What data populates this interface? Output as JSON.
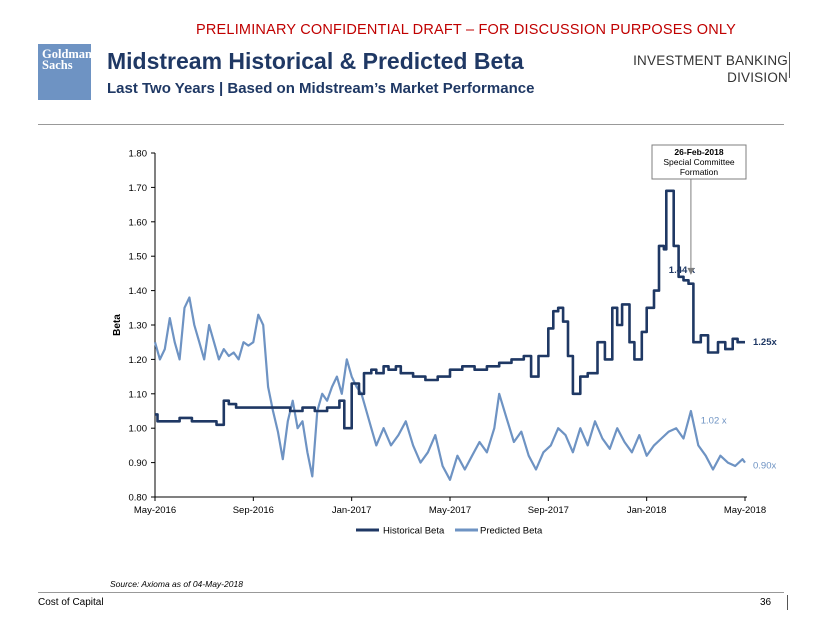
{
  "banner": "PRELIMINARY CONFIDENTIAL DRAFT – FOR DISCUSSION PURPOSES ONLY",
  "logo": {
    "line1": "Goldman",
    "line2": "Sachs"
  },
  "header": {
    "title": "Midstream Historical & Predicted Beta",
    "subtitle": "Last Two Years | Based on Midstream’s Market Performance",
    "division_line1": "INVESTMENT BANKING",
    "division_line2": "DIVISION"
  },
  "chart_data": {
    "type": "line",
    "ylabel": "Beta",
    "ylim": [
      0.8,
      1.8
    ],
    "yticks": [
      "0.80",
      "0.90",
      "1.00",
      "1.10",
      "1.20",
      "1.30",
      "1.40",
      "1.50",
      "1.60",
      "1.70",
      "1.80"
    ],
    "x_range": [
      0,
      24
    ],
    "xticks": [
      {
        "label": "May-2016",
        "m": 0
      },
      {
        "label": "Sep-2016",
        "m": 4
      },
      {
        "label": "Jan-2017",
        "m": 8
      },
      {
        "label": "May-2017",
        "m": 12
      },
      {
        "label": "Sep-2017",
        "m": 16
      },
      {
        "label": "Jan-2018",
        "m": 20
      },
      {
        "label": "May-2018",
        "m": 24
      }
    ],
    "series": [
      {
        "name": "Historical Beta",
        "color": "#1f3864",
        "x": [
          0,
          0.1,
          0.5,
          1.0,
          1.5,
          2.0,
          2.5,
          2.8,
          3.0,
          3.3,
          3.6,
          4.0,
          4.5,
          5.0,
          5.5,
          6.0,
          6.5,
          7.0,
          7.5,
          7.7,
          8.0,
          8.3,
          8.5,
          8.8,
          9.0,
          9.3,
          9.5,
          9.8,
          10.0,
          10.5,
          11.0,
          11.5,
          12.0,
          12.5,
          13.0,
          13.5,
          14.0,
          14.5,
          15.0,
          15.3,
          15.6,
          16.0,
          16.2,
          16.4,
          16.6,
          16.8,
          17.0,
          17.3,
          17.6,
          18.0,
          18.3,
          18.6,
          18.8,
          19.0,
          19.3,
          19.5,
          19.8,
          20.0,
          20.3,
          20.5,
          20.7,
          20.8,
          20.9,
          21.1,
          21.3,
          21.5,
          21.7,
          21.9,
          22.2,
          22.5,
          22.7,
          22.9,
          23.2,
          23.5,
          23.7,
          24.0
        ],
        "values": [
          1.04,
          1.02,
          1.02,
          1.03,
          1.02,
          1.02,
          1.01,
          1.08,
          1.07,
          1.06,
          1.06,
          1.06,
          1.06,
          1.06,
          1.05,
          1.06,
          1.05,
          1.06,
          1.08,
          1.0,
          1.13,
          1.1,
          1.16,
          1.17,
          1.16,
          1.18,
          1.17,
          1.18,
          1.16,
          1.15,
          1.14,
          1.15,
          1.17,
          1.18,
          1.17,
          1.18,
          1.19,
          1.2,
          1.21,
          1.15,
          1.21,
          1.29,
          1.34,
          1.35,
          1.31,
          1.21,
          1.1,
          1.15,
          1.16,
          1.25,
          1.2,
          1.35,
          1.3,
          1.36,
          1.25,
          1.2,
          1.28,
          1.35,
          1.4,
          1.53,
          1.52,
          1.69,
          1.69,
          1.53,
          1.44,
          1.43,
          1.42,
          1.25,
          1.27,
          1.22,
          1.22,
          1.25,
          1.23,
          1.26,
          1.25,
          1.25
        ]
      },
      {
        "name": "Predicted Beta",
        "color": "#6e93c3",
        "x": [
          0,
          0.2,
          0.4,
          0.6,
          0.8,
          1.0,
          1.2,
          1.4,
          1.6,
          1.8,
          2.0,
          2.2,
          2.4,
          2.6,
          2.8,
          3.0,
          3.2,
          3.4,
          3.6,
          3.8,
          4.0,
          4.2,
          4.4,
          4.6,
          4.8,
          5.0,
          5.2,
          5.4,
          5.6,
          5.8,
          6.0,
          6.2,
          6.4,
          6.6,
          6.8,
          7.0,
          7.2,
          7.4,
          7.6,
          7.8,
          8.0,
          8.2,
          8.4,
          8.6,
          8.8,
          9.0,
          9.3,
          9.6,
          9.9,
          10.2,
          10.5,
          10.8,
          11.1,
          11.4,
          11.7,
          12.0,
          12.3,
          12.6,
          12.9,
          13.2,
          13.5,
          13.8,
          14.0,
          14.3,
          14.6,
          14.9,
          15.2,
          15.5,
          15.8,
          16.1,
          16.4,
          16.7,
          17.0,
          17.3,
          17.6,
          17.9,
          18.2,
          18.5,
          18.8,
          19.1,
          19.4,
          19.7,
          20.0,
          20.3,
          20.6,
          20.9,
          21.2,
          21.5,
          21.8,
          22.1,
          22.4,
          22.7,
          23.0,
          23.3,
          23.6,
          23.9,
          24.0
        ],
        "values": [
          1.25,
          1.2,
          1.23,
          1.32,
          1.25,
          1.2,
          1.35,
          1.38,
          1.3,
          1.25,
          1.2,
          1.3,
          1.25,
          1.2,
          1.23,
          1.21,
          1.22,
          1.2,
          1.25,
          1.24,
          1.25,
          1.33,
          1.3,
          1.12,
          1.05,
          0.99,
          0.91,
          1.02,
          1.08,
          1.0,
          1.02,
          0.93,
          0.86,
          1.05,
          1.1,
          1.08,
          1.12,
          1.15,
          1.1,
          1.2,
          1.15,
          1.12,
          1.1,
          1.05,
          1.0,
          0.95,
          1.0,
          0.95,
          0.98,
          1.02,
          0.95,
          0.9,
          0.93,
          0.98,
          0.89,
          0.85,
          0.92,
          0.88,
          0.92,
          0.96,
          0.93,
          1.0,
          1.1,
          1.03,
          0.96,
          0.99,
          0.92,
          0.88,
          0.93,
          0.95,
          1.0,
          0.98,
          0.93,
          1.0,
          0.95,
          1.02,
          0.97,
          0.94,
          1.0,
          0.96,
          0.93,
          0.98,
          0.92,
          0.95,
          0.97,
          0.99,
          1.0,
          0.97,
          1.05,
          0.95,
          0.92,
          0.88,
          0.92,
          0.9,
          0.89,
          0.91,
          0.9
        ]
      }
    ],
    "annotations": [
      {
        "label": "1.44 x",
        "series": "Historical Beta",
        "value": 1.44
      },
      {
        "label": "1.25x",
        "series": "Historical Beta",
        "value": 1.25
      },
      {
        "label": "1.02 x",
        "series": "Predicted Beta",
        "value": 1.02
      },
      {
        "label": "0.90x",
        "series": "Predicted Beta",
        "value": 0.9
      }
    ],
    "callout": {
      "date": "26-Feb-2018",
      "line1": "Special Committee",
      "line2": "Formation",
      "m": 21.8
    },
    "legend_position": "bottom-center"
  },
  "source": "Source: Axioma as of 04-May-2018",
  "footer": {
    "left": "Cost of Capital",
    "page": "36"
  }
}
